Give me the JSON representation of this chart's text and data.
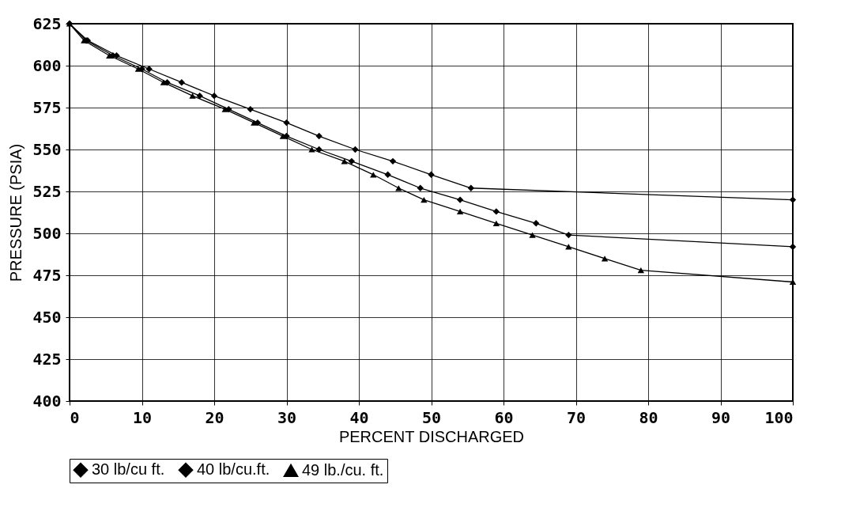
{
  "chart_data": {
    "type": "line",
    "xlabel": "PERCENT DISCHARGED",
    "ylabel": "PRESSURE (PSIA)",
    "xlim": [
      0,
      100
    ],
    "xticks": [
      0,
      10,
      20,
      30,
      40,
      50,
      60,
      70,
      80,
      90,
      100
    ],
    "ylim": [
      400,
      625
    ],
    "yticks": [
      400,
      425,
      450,
      475,
      500,
      525,
      550,
      575,
      600,
      625
    ],
    "grid": true,
    "legend": "bottom",
    "marker": "diamond",
    "series": [
      {
        "name": "30 lb/cu ft.",
        "color": "#000000",
        "x": [
          0,
          2.5,
          6.5,
          11,
          15.5,
          20,
          25,
          30,
          34.5,
          39.5,
          44.7,
          50,
          55.5,
          100
        ],
        "values": [
          625,
          615,
          606,
          598,
          590,
          582,
          574,
          566,
          558,
          550,
          543,
          535,
          527,
          520
        ]
      },
      {
        "name": "40 lb/cu.ft.",
        "color": "#000000",
        "x": [
          0,
          2.3,
          6,
          10,
          13.5,
          18,
          22,
          26,
          30,
          34.5,
          39,
          44,
          48.5,
          54,
          59,
          64.5,
          69,
          100
        ],
        "values": [
          625,
          615,
          606,
          598,
          590,
          582,
          574,
          566,
          558,
          550,
          543,
          535,
          527,
          520,
          513,
          506,
          499,
          492
        ]
      },
      {
        "name": "49 lb./cu. ft.",
        "color": "#000000",
        "marker": "triangle",
        "x": [
          0,
          2,
          5.5,
          9.5,
          13,
          17,
          21.5,
          25.5,
          29.5,
          33.5,
          38,
          42,
          45.5,
          49,
          54,
          59,
          64,
          69,
          74,
          79,
          100
        ],
        "values": [
          625,
          615,
          606,
          598,
          590,
          582,
          574,
          566,
          558,
          550,
          543,
          535,
          527,
          520,
          513,
          506,
          499,
          492,
          485,
          478,
          471
        ]
      }
    ]
  }
}
